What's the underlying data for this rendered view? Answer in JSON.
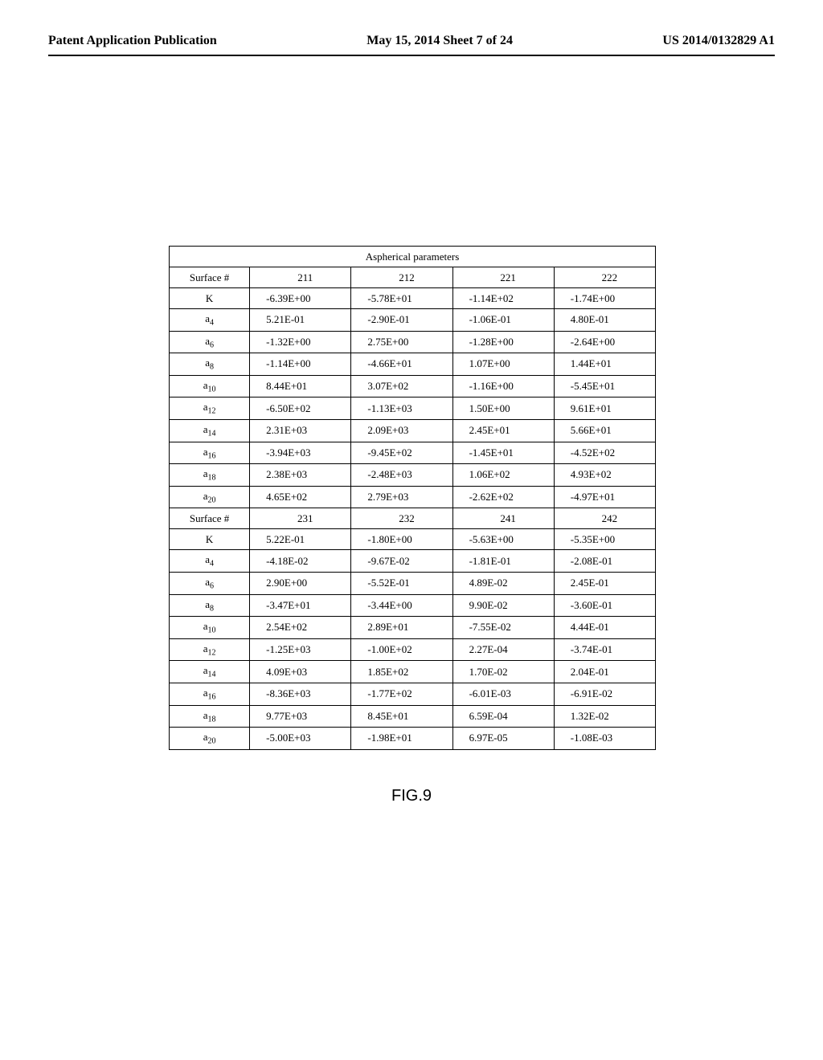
{
  "header": {
    "left": "Patent Application Publication",
    "center": "May 15, 2014  Sheet 7 of 24",
    "right": "US 2014/0132829 A1"
  },
  "table": {
    "title": "Aspherical parameters",
    "block1": {
      "surface_label": "Surface #",
      "columns": [
        "211",
        "212",
        "221",
        "222"
      ],
      "rows": [
        {
          "label": "K",
          "values": [
            "-6.39E+00",
            "-5.78E+01",
            "-1.14E+02",
            "-1.74E+00"
          ]
        },
        {
          "label": "a<sub>4</sub>",
          "values": [
            "5.21E-01",
            "-2.90E-01",
            "-1.06E-01",
            "4.80E-01"
          ]
        },
        {
          "label": "a<sub>6</sub>",
          "values": [
            "-1.32E+00",
            "2.75E+00",
            "-1.28E+00",
            "-2.64E+00"
          ]
        },
        {
          "label": "a<sub>8</sub>",
          "values": [
            "-1.14E+00",
            "-4.66E+01",
            "1.07E+00",
            "1.44E+01"
          ]
        },
        {
          "label": "a<sub>10</sub>",
          "values": [
            "8.44E+01",
            "3.07E+02",
            "-1.16E+00",
            "-5.45E+01"
          ]
        },
        {
          "label": "a<sub>12</sub>",
          "values": [
            "-6.50E+02",
            "-1.13E+03",
            "1.50E+00",
            "9.61E+01"
          ]
        },
        {
          "label": "a<sub>14</sub>",
          "values": [
            "2.31E+03",
            "2.09E+03",
            "2.45E+01",
            "5.66E+01"
          ]
        },
        {
          "label": "a<sub>16</sub>",
          "values": [
            "-3.94E+03",
            "-9.45E+02",
            "-1.45E+01",
            "-4.52E+02"
          ]
        },
        {
          "label": "a<sub>18</sub>",
          "values": [
            "2.38E+03",
            "-2.48E+03",
            "1.06E+02",
            "4.93E+02"
          ]
        },
        {
          "label": "a<sub>20</sub>",
          "values": [
            "4.65E+02",
            "2.79E+03",
            "-2.62E+02",
            "-4.97E+01"
          ]
        }
      ]
    },
    "block2": {
      "surface_label": "Surface #",
      "columns": [
        "231",
        "232",
        "241",
        "242"
      ],
      "rows": [
        {
          "label": "K",
          "values": [
            "5.22E-01",
            "-1.80E+00",
            "-5.63E+00",
            "-5.35E+00"
          ]
        },
        {
          "label": "a<sub>4</sub>",
          "values": [
            "-4.18E-02",
            "-9.67E-02",
            "-1.81E-01",
            "-2.08E-01"
          ]
        },
        {
          "label": "a<sub>6</sub>",
          "values": [
            "2.90E+00",
            "-5.52E-01",
            "4.89E-02",
            "2.45E-01"
          ]
        },
        {
          "label": "a<sub>8</sub>",
          "values": [
            "-3.47E+01",
            "-3.44E+00",
            "9.90E-02",
            "-3.60E-01"
          ]
        },
        {
          "label": "a<sub>10</sub>",
          "values": [
            "2.54E+02",
            "2.89E+01",
            "-7.55E-02",
            "4.44E-01"
          ]
        },
        {
          "label": "a<sub>12</sub>",
          "values": [
            "-1.25E+03",
            "-1.00E+02",
            "2.27E-04",
            "-3.74E-01"
          ]
        },
        {
          "label": "a<sub>14</sub>",
          "values": [
            "4.09E+03",
            "1.85E+02",
            "1.70E-02",
            "2.04E-01"
          ]
        },
        {
          "label": "a<sub>16</sub>",
          "values": [
            "-8.36E+03",
            "-1.77E+02",
            "-6.01E-03",
            "-6.91E-02"
          ]
        },
        {
          "label": "a<sub>18</sub>",
          "values": [
            "9.77E+03",
            "8.45E+01",
            "6.59E-04",
            "1.32E-02"
          ]
        },
        {
          "label": "a<sub>20</sub>",
          "values": [
            "-5.00E+03",
            "-1.98E+01",
            "6.97E-05",
            "-1.08E-03"
          ]
        }
      ]
    }
  },
  "figure_label": "FIG.9"
}
